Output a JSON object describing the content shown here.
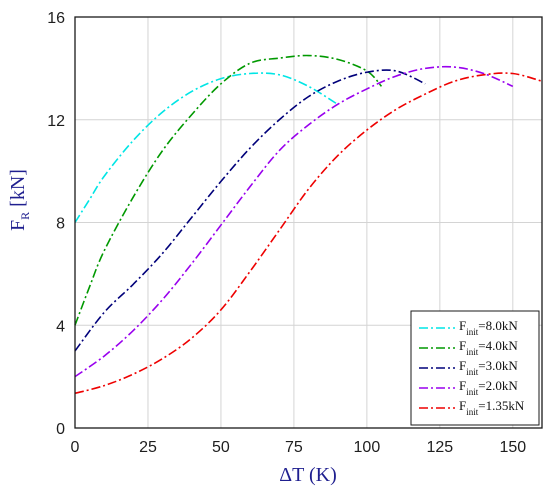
{
  "chart_data": {
    "type": "line",
    "xlabel": "ΔT (K)",
    "ylabel": {
      "main": "F",
      "sub": "R",
      "unit": " [kN]"
    },
    "xlim": [
      0,
      160
    ],
    "ylim": [
      0,
      16
    ],
    "xticks": [
      0,
      25,
      50,
      75,
      100,
      125,
      150
    ],
    "yticks": [
      0,
      4,
      8,
      12,
      16
    ],
    "grid": true,
    "legend_position": "bottom-right",
    "series": [
      {
        "name": "8.0kN",
        "legend_main": "F",
        "legend_sub": "init",
        "legend_value": "=8.0kN",
        "color": "#00e5e5",
        "x": [
          0,
          5,
          10,
          20,
          30,
          40,
          50,
          60,
          70,
          80,
          90
        ],
        "y": [
          8.0,
          8.9,
          9.8,
          11.2,
          12.3,
          13.1,
          13.6,
          13.8,
          13.75,
          13.3,
          12.6
        ]
      },
      {
        "name": "4.0kN",
        "legend_main": "F",
        "legend_sub": "init",
        "legend_value": "=4.0kN",
        "color": "#009900",
        "x": [
          0,
          5,
          10,
          20,
          30,
          40,
          50,
          60,
          70,
          80,
          90,
          100,
          105
        ],
        "y": [
          4.0,
          5.5,
          6.9,
          9.0,
          10.8,
          12.2,
          13.4,
          14.2,
          14.4,
          14.5,
          14.35,
          13.9,
          13.3
        ]
      },
      {
        "name": "3.0kN",
        "legend_main": "F",
        "legend_sub": "init",
        "legend_value": "=3.0kN",
        "color": "#00007a",
        "x": [
          0,
          10,
          20,
          30,
          40,
          50,
          60,
          70,
          80,
          90,
          100,
          110,
          120
        ],
        "y": [
          3.0,
          4.5,
          5.6,
          6.8,
          8.2,
          9.6,
          10.9,
          12.0,
          12.9,
          13.5,
          13.85,
          13.9,
          13.4
        ]
      },
      {
        "name": "2.0kN",
        "legend_main": "F",
        "legend_sub": "init",
        "legend_value": "=2.0kN",
        "color": "#9900ee",
        "x": [
          0,
          10,
          20,
          30,
          40,
          50,
          60,
          70,
          80,
          90,
          100,
          110,
          120,
          130,
          140,
          150
        ],
        "y": [
          2.0,
          2.8,
          3.8,
          5.0,
          6.4,
          7.9,
          9.4,
          10.8,
          11.8,
          12.6,
          13.2,
          13.7,
          14.0,
          14.05,
          13.8,
          13.3
        ]
      },
      {
        "name": "1.35kN",
        "legend_main": "F",
        "legend_sub": "init",
        "legend_value": "=1.35kN",
        "color": "#ee0000",
        "x": [
          0,
          10,
          20,
          30,
          40,
          50,
          60,
          70,
          80,
          90,
          100,
          110,
          120,
          130,
          140,
          150,
          160
        ],
        "y": [
          1.35,
          1.65,
          2.1,
          2.7,
          3.5,
          4.6,
          6.1,
          7.7,
          9.3,
          10.6,
          11.6,
          12.4,
          13.0,
          13.5,
          13.75,
          13.8,
          13.5
        ]
      }
    ]
  }
}
